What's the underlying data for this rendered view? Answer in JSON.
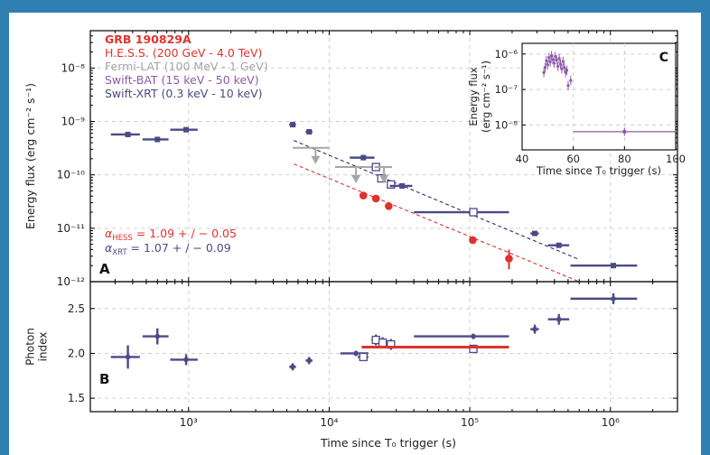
{
  "colors": {
    "background": "#2f7fb3",
    "hess": "#e0322c",
    "fermi": "#a6a6a6",
    "bat": "#8e5aa8",
    "xrt": "#4b4a86",
    "grid": "#d0d0d0"
  },
  "chart_data": [
    {
      "panel": "A",
      "type": "scatter",
      "xscale": "log",
      "yscale": "log",
      "xlim": [
        200,
        3000000
      ],
      "ylim": [
        1e-12,
        5e-08
      ],
      "ylabel": "Energy flux (erg cm⁻² s⁻¹)",
      "y_tick_labels": [
        "10⁻¹²",
        "10⁻¹¹",
        "10⁻¹⁰",
        "10⁻⁹",
        "10⁻⁸"
      ],
      "grid": true,
      "legend_position": "top-left",
      "panel_label": "A",
      "legend_title": "GRB 190829A",
      "legend": [
        {
          "label": "H.E.S.S. (200 GeV - 4.0 TeV)",
          "color": "#e0322c"
        },
        {
          "label": "Fermi-LAT (100 MeV - 1 GeV)",
          "color": "#a6a6a6"
        },
        {
          "label": "Swift-BAT (15 keV - 50 keV)",
          "color": "#8e5aa8"
        },
        {
          "label": "Swift-XRT (0.3 keV - 10 keV)",
          "color": "#4b4a86"
        }
      ],
      "annotations": [
        {
          "text": "αHESS = 1.09 + / − 0.05",
          "color": "#e0322c"
        },
        {
          "text": "αXRT = 1.07 + / − 0.09",
          "color": "#4b4a86"
        }
      ],
      "series": [
        {
          "name": "H.E.S.S.",
          "marker": "circle",
          "points": [
            {
              "x": 17500,
              "y": 4.1e-11,
              "yerr": [
                5e-12,
                5e-12
              ]
            },
            {
              "x": 21500,
              "y": 3.6e-11,
              "yerr": [
                4e-12,
                4e-12
              ]
            },
            {
              "x": 26500,
              "y": 2.6e-11,
              "yerr": [
                4e-12,
                5e-12
              ]
            },
            {
              "x": 105000,
              "y": 6e-12,
              "yerr": [
                8e-13,
                8e-13
              ]
            },
            {
              "x": 190000,
              "y": 2.7e-12,
              "yerr": [
                1e-12,
                1.3e-12
              ]
            }
          ]
        },
        {
          "name": "Fermi-LAT upper limits",
          "marker": "arrow-down",
          "points": [
            {
              "x": 8000,
              "y": 3.2e-10,
              "xerr": [
                2500,
                2000
              ]
            },
            {
              "x": 15500,
              "y": 1.4e-10,
              "xerr": [
                4500,
                4500
              ]
            },
            {
              "x": 24500,
              "y": 1.4e-10,
              "xerr": [
                3500,
                3500
              ]
            }
          ]
        },
        {
          "name": "Swift-XRT",
          "marker": "square",
          "points": [
            {
              "x": 370,
              "y": 5.7e-10,
              "xerr": [
                90,
                80
              ]
            },
            {
              "x": 600,
              "y": 4.6e-10,
              "xerr": [
                130,
                120
              ]
            },
            {
              "x": 960,
              "y": 7e-10,
              "xerr": [
                220,
                200
              ]
            },
            {
              "x": 5500,
              "y": 8.7e-10,
              "xerr": [
                300,
                300
              ],
              "yerr": [
                6e-11,
                6e-11
              ]
            },
            {
              "x": 7200,
              "y": 6.4e-10,
              "xerr": [
                400,
                400
              ]
            },
            {
              "x": 17500,
              "y": 2.1e-10,
              "xerr": [
                3500,
                3500
              ]
            },
            {
              "x": 21500,
              "y": 1.4e-10,
              "xerr": [
                1500,
                1500
              ],
              "open": true
            },
            {
              "x": 23500,
              "y": 8.6e-11,
              "xerr": [
                1500,
                1500
              ],
              "open": true
            },
            {
              "x": 27500,
              "y": 6.6e-11,
              "xerr": [
                1500,
                1500
              ],
              "open": true
            },
            {
              "x": 33000,
              "y": 6.2e-11,
              "xerr": [
                6000,
                6000
              ]
            },
            {
              "x": 106000,
              "y": 2e-11,
              "xerr": [
                66000,
                84000
              ],
              "open": true
            },
            {
              "x": 290000,
              "y": 8e-12,
              "xerr": [
                20000,
                20000
              ]
            },
            {
              "x": 430000,
              "y": 4.8e-12,
              "xerr": [
                70000,
                80000
              ]
            },
            {
              "x": 1050000,
              "y": 2e-12,
              "xerr": [
                530000,
                500000
              ]
            }
          ]
        },
        {
          "name": "HESS power-law fit",
          "type": "dashed-line",
          "color": "#e0322c",
          "x": [
            5600,
            600000
          ],
          "y": [
            1.6e-10,
            1e-12
          ]
        },
        {
          "name": "XRT power-law fit",
          "type": "dashed-line",
          "color": "#2e2b6e",
          "x": [
            5600,
            600000
          ],
          "y": [
            4.4e-10,
            2.6e-12
          ]
        }
      ],
      "inset": {
        "panel_label": "C",
        "xlabel": "Time since T₀ trigger (s)",
        "ylabel": "Energy flux (erg cm⁻² s⁻¹)",
        "xlim": [
          40,
          100
        ],
        "ylim": [
          2e-09,
          2e-06
        ],
        "xscale": "linear",
        "yscale": "log",
        "x_ticks": [
          40,
          60,
          80,
          100
        ],
        "y_tick_labels": [
          "10⁻⁸",
          "10⁻⁷",
          "10⁻⁶"
        ],
        "series": [
          {
            "name": "Swift-BAT",
            "points": [
              [
                48.5,
                3e-07
              ],
              [
                49,
                4.2e-07
              ],
              [
                49.5,
                6.5e-07
              ],
              [
                50,
                5e-07
              ],
              [
                50.5,
                8e-07
              ],
              [
                51,
                6e-07
              ],
              [
                51.5,
                9e-07
              ],
              [
                52,
                7e-07
              ],
              [
                52.5,
                5.5e-07
              ],
              [
                53,
                8.5e-07
              ],
              [
                53.5,
                6.8e-07
              ],
              [
                54,
                4.5e-07
              ],
              [
                54.5,
                7.5e-07
              ],
              [
                55,
                5.2e-07
              ],
              [
                55.5,
                3.8e-07
              ],
              [
                56,
                6.2e-07
              ],
              [
                56.5,
                4.2e-07
              ],
              [
                57,
                3e-07
              ],
              [
                57.5,
                3.5e-07
              ],
              [
                58,
                1.3e-07
              ],
              [
                59,
                1.8e-07
              ]
            ]
          },
          {
            "name": "Swift-BAT late",
            "points": [
              [
                80,
                6.5e-09
              ]
            ],
            "xrange": [
              60,
              100
            ]
          }
        ]
      }
    },
    {
      "panel": "B",
      "type": "scatter",
      "xscale": "log",
      "xlim": [
        200,
        3000000
      ],
      "ylim": [
        1.35,
        2.8
      ],
      "xlabel": "Time since T₀ trigger (s)",
      "ylabel": "Photon index",
      "x_tick_labels": [
        "10³",
        "10⁴",
        "10⁵",
        "10⁶"
      ],
      "y_ticks": [
        "1.5",
        "2.0",
        "2.5"
      ],
      "panel_label": "B",
      "series": [
        {
          "name": "Swift-XRT",
          "points": [
            {
              "x": 370,
              "y": 1.96,
              "xerr": [
                90,
                80
              ],
              "yerr": [
                0.13,
                0.13
              ]
            },
            {
              "x": 600,
              "y": 2.19,
              "xerr": [
                130,
                120
              ],
              "yerr": [
                0.09,
                0.09
              ]
            },
            {
              "x": 960,
              "y": 1.93,
              "xerr": [
                220,
                200
              ],
              "yerr": [
                0.06,
                0.06
              ]
            },
            {
              "x": 5500,
              "y": 1.85,
              "xerr": [
                300,
                300
              ],
              "yerr": [
                0.04,
                0.04
              ]
            },
            {
              "x": 7200,
              "y": 1.92,
              "xerr": [
                400,
                400
              ],
              "yerr": [
                0.04,
                0.04
              ]
            },
            {
              "x": 15500,
              "y": 2.0,
              "xerr": [
                3500,
                3500
              ],
              "yerr": [
                0.03,
                0.03
              ]
            },
            {
              "x": 17500,
              "y": 1.96,
              "xerr": [
                1500,
                1500
              ],
              "yerr": [
                0.03,
                0.03
              ],
              "open": true
            },
            {
              "x": 21500,
              "y": 2.15,
              "xerr": [
                1500,
                1500
              ],
              "yerr": [
                0.06,
                0.06
              ],
              "open": true
            },
            {
              "x": 24000,
              "y": 2.12,
              "xerr": [
                1500,
                1500
              ],
              "yerr": [
                0.06,
                0.06
              ],
              "open": true
            },
            {
              "x": 27500,
              "y": 2.1,
              "xerr": [
                1500,
                1500
              ],
              "yerr": [
                0.06,
                0.06
              ],
              "open": true
            },
            {
              "x": 106000,
              "y": 2.19,
              "xerr": [
                66000,
                84000
              ],
              "yerr": [
                0.03,
                0.03
              ]
            },
            {
              "x": 106000,
              "y": 2.05,
              "xerr": [
                6000,
                6000
              ],
              "yerr": [
                0.03,
                0.03
              ],
              "open": true
            },
            {
              "x": 290000,
              "y": 2.27,
              "xerr": [
                20000,
                20000
              ],
              "yerr": [
                0.05,
                0.05
              ]
            },
            {
              "x": 430000,
              "y": 2.38,
              "xerr": [
                70000,
                80000
              ],
              "yerr": [
                0.06,
                0.06
              ]
            },
            {
              "x": 1050000,
              "y": 2.61,
              "xerr": [
                530000,
                500000
              ],
              "yerr": [
                0.06,
                0.06
              ]
            }
          ]
        },
        {
          "name": "H.E.S.S.",
          "type": "segment",
          "x": [
            17000,
            190000
          ],
          "y": 2.07
        }
      ]
    }
  ]
}
